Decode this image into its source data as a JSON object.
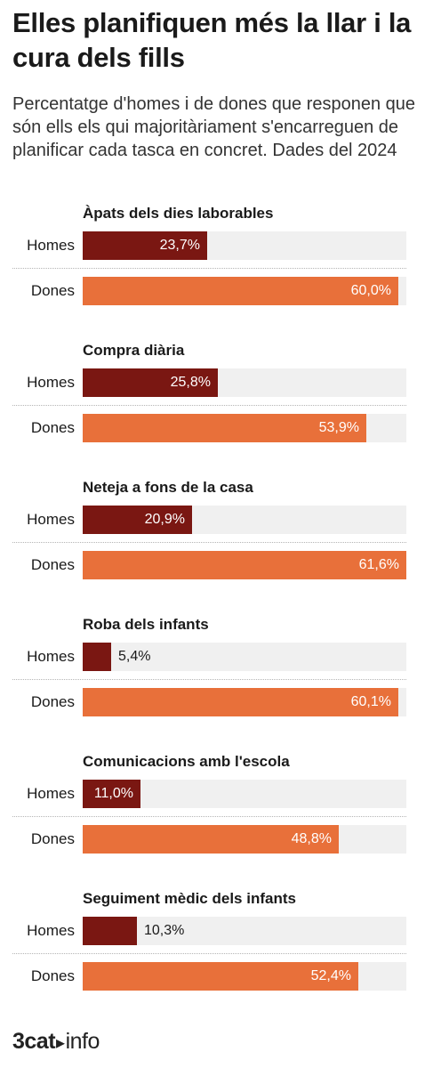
{
  "title": "Elles planifiquen més la llar i la cura dels fills",
  "subtitle": "Percentatge d'homes i de dones que responen que són ells els qui majoritàriament s'encarreguen de planificar cada tasca en concret. Dades del 2024",
  "logo": {
    "brand": "3cat",
    "suffix": "info",
    "arrow_icon": "play-arrow-icon"
  },
  "colors": {
    "homes": "#7a1712",
    "dones": "#e8703a",
    "track": "#f0f0f0"
  },
  "chart_data": {
    "type": "bar",
    "orientation": "horizontal",
    "xlim": [
      0,
      61.6
    ],
    "grid": false,
    "series_names": [
      "Homes",
      "Dones"
    ],
    "groups": [
      {
        "label": "Àpats dels dies laborables",
        "values": [
          23.7,
          60.0
        ],
        "labels": [
          "23,7%",
          "60,0%"
        ]
      },
      {
        "label": "Compra diària",
        "values": [
          25.8,
          53.9
        ],
        "labels": [
          "25,8%",
          "53,9%"
        ]
      },
      {
        "label": "Neteja a fons de la casa",
        "values": [
          20.9,
          61.6
        ],
        "labels": [
          "20,9%",
          "61,6%"
        ]
      },
      {
        "label": "Roba dels infants",
        "values": [
          5.4,
          60.1
        ],
        "labels": [
          "5,4%",
          "60,1%"
        ]
      },
      {
        "label": "Comunicacions amb l'escola",
        "values": [
          11.0,
          48.8
        ],
        "labels": [
          "11,0%",
          "48,8%"
        ]
      },
      {
        "label": "Seguiment mèdic dels infants",
        "values": [
          10.3,
          52.4
        ],
        "labels": [
          "10,3%",
          "52,4%"
        ]
      }
    ]
  }
}
